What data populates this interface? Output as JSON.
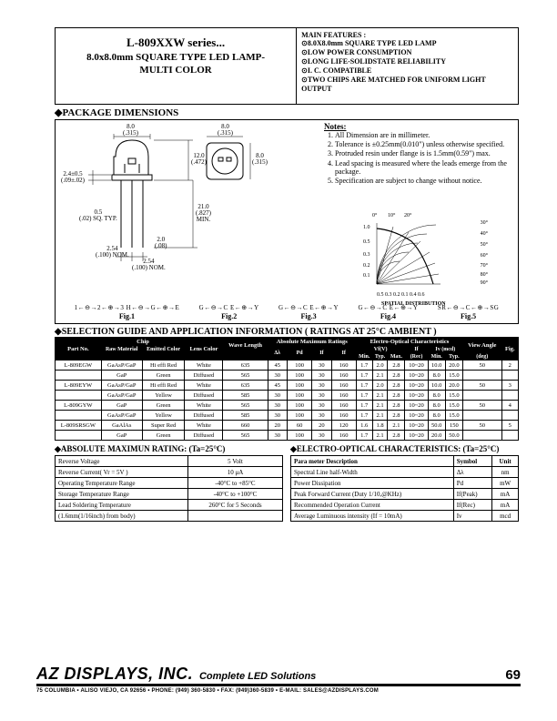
{
  "header": {
    "series": "L-809XXW series...",
    "subtitle1": "8.0x8.0mm SQUARE TYPE LED LAMP-",
    "subtitle2": "MULTI COLOR",
    "features_title": "MAIN FEATURES :",
    "features": [
      "⊙8.0X8.0mm SQUARE TYPE LED LAMP",
      "⊙LOW POWER CONSUMPTION",
      "⊙LONG LIFE-SOLIDSTATE RELIABILITY",
      "⊙I. C. COMPATIBLE",
      "⊙TWO CHIPS ARE MATCHED FOR UNIFORM LIGHT OUTPUT"
    ]
  },
  "pkg": {
    "title": "◆PACKAGE DIMENSIONS",
    "notes_title": "Notes:",
    "notes": [
      "All Dimension are in millimeter.",
      "Tolerance is ±0.25mm(0.010\") unless otherwise specified.",
      "Protruded resin under flange is is 1.5mm(0.59\") max.",
      "Lead spacing is measured where the leads emerge from the package.",
      "Specification are subject to change without notice."
    ],
    "dims": {
      "d1": "8.0",
      "d1i": "(.315)",
      "d2": "8.0",
      "d2i": "(.315)",
      "d3": "12.0",
      "d3i": "(.472)",
      "d4": "2.4±0.5",
      "d4i": "(.09±.02)",
      "d5": "21.0",
      "d5i": "(.827)",
      "d5b": "MIN.",
      "d6": "0.5",
      "d6i": "(.02)",
      "d6s": "SQ. TYP.",
      "d7": "2.54",
      "d7i": "(.100)",
      "d7s": "NOM.",
      "d8": "2.54",
      "d8i": "(.100)",
      "d8s": "NOM.",
      "d9": "2.0",
      "d9i": "(.08)"
    },
    "spatial": {
      "title": "SPATIAL DISTRIBUTION",
      "angles": [
        "0°",
        "10°",
        "20°",
        "30°",
        "40°",
        "50°",
        "60°",
        "70°",
        "80°",
        "90°"
      ],
      "radii": [
        "0.5",
        "1.0",
        "0.5",
        "0.3",
        "0.2",
        "0.1",
        "0.2",
        "0.3",
        "0.4",
        "0.6"
      ]
    },
    "figs": [
      {
        "pins": "1←⊖→2←⊕→3  H←⊖→G←⊕→E",
        "label": "Fig.1"
      },
      {
        "pins": "G←⊖→C  E←⊕→Y",
        "label": "Fig.2"
      },
      {
        "pins": "G←⊖→C  E←⊕→Y",
        "label": "Fig.3"
      },
      {
        "pins": "G←⊖→C  E←⊕→Y",
        "label": "Fig.4"
      },
      {
        "pins": "SR←⊖→C←⊕→SG",
        "label": "Fig.5"
      }
    ]
  },
  "sel": {
    "title": "◆SELECTION GUIDE AND APPLICATION INFORMATION ( RATINGS AT 25°C AMBIENT )",
    "headers1": [
      "Part No.",
      "Chip",
      "",
      "Lens Color",
      "Wave Length",
      "Absolute Maximum Ratings",
      "",
      "",
      "",
      "Electro-Optical Characteristics",
      "",
      "",
      "",
      "",
      "",
      "View Angle",
      "Fig."
    ],
    "headers2": [
      "",
      "Raw Material",
      "Emitted Color",
      "",
      "",
      "Δλ",
      "Pd",
      "If",
      "If",
      "Vf(V)",
      "",
      "",
      "If",
      "Iv (mcd)",
      "",
      "",
      ""
    ],
    "headers3": [
      "",
      "",
      "",
      "",
      "",
      "",
      "",
      "",
      "",
      "Min.",
      "Typ.",
      "Max.",
      "(Rec)",
      "Min.",
      "Typ.",
      "(deg)",
      ""
    ],
    "rows": [
      [
        "L-809EGW",
        "GaAsP/GaP",
        "Hi effi Red",
        "White",
        "635",
        "45",
        "100",
        "30",
        "160",
        "1.7",
        "2.0",
        "2.8",
        "10~20",
        "10.0",
        "20.0",
        "50",
        "2"
      ],
      [
        "",
        "GaP",
        "Green",
        "Diffused",
        "565",
        "30",
        "100",
        "30",
        "160",
        "1.7",
        "2.1",
        "2.8",
        "10~20",
        "8.0",
        "15.0",
        "",
        ""
      ],
      [
        "L-809EYW",
        "GaAsP/GaP",
        "Hi effi Red",
        "White",
        "635",
        "45",
        "100",
        "30",
        "160",
        "1.7",
        "2.0",
        "2.8",
        "10~20",
        "10.0",
        "20.0",
        "50",
        "3"
      ],
      [
        "",
        "GaAsP/GaP",
        "Yellow",
        "Diffused",
        "585",
        "30",
        "100",
        "30",
        "160",
        "1.7",
        "2.1",
        "2.8",
        "10~20",
        "8.0",
        "15.0",
        "",
        ""
      ],
      [
        "L-809GYW",
        "GaP",
        "Green",
        "White",
        "565",
        "30",
        "100",
        "30",
        "160",
        "1.7",
        "2.1",
        "2.8",
        "10~20",
        "8.0",
        "15.0",
        "50",
        "4"
      ],
      [
        "",
        "GaAsP/GaP",
        "Yellow",
        "Diffused",
        "585",
        "30",
        "100",
        "30",
        "160",
        "1.7",
        "2.1",
        "2.8",
        "10~20",
        "8.0",
        "15.0",
        "",
        ""
      ],
      [
        "L-809SRSGW",
        "GaAlAs",
        "Super Red",
        "White",
        "660",
        "20",
        "60",
        "20",
        "120",
        "1.6",
        "1.8",
        "2.1",
        "10~20",
        "50.0",
        "150",
        "50",
        "5"
      ],
      [
        "",
        "GaP",
        "Green",
        "Diffused",
        "565",
        "30",
        "100",
        "30",
        "160",
        "1.7",
        "2.1",
        "2.8",
        "10~20",
        "20.0",
        "50.0",
        "",
        ""
      ]
    ]
  },
  "abs": {
    "title": "◆ABSOLUTE MAXIMUN RATING: (Ta=25°C)",
    "rows": [
      [
        "Reverse Voltage",
        "5 Volt"
      ],
      [
        "Reverse Current( Vr = 5V )",
        "10 μA"
      ],
      [
        "Operating Temperature Range",
        "-40°C to +85°C"
      ],
      [
        "Storage Temperature Range",
        "-40°C to +100°C"
      ],
      [
        "Lead Soldering Temperature",
        "260°C for 5 Seconds"
      ],
      [
        "(1.6mm(1/16inch) from body)",
        ""
      ]
    ]
  },
  "eoc": {
    "title": "◆ELECTRO-OPTICAL CHARACTERISTICS: (Ta=25°C)",
    "headers": [
      "Para meter Description",
      "Symbol",
      "Unit"
    ],
    "rows": [
      [
        "Spectral Line half-Width",
        "Δλ",
        "nm"
      ],
      [
        "Power Dissipation",
        "Pd",
        "mW"
      ],
      [
        "Peak Forward Current (Duty 1/10,@KHz)",
        "If(Peak)",
        "mA"
      ],
      [
        "Recommended Operation Current",
        "If(Rec)",
        "mA"
      ],
      [
        "Average Luminuous intensity (If = 10mA)",
        "Iv",
        "mcd"
      ]
    ]
  },
  "footer": {
    "company": "AZ DISPLAYS, INC.",
    "tagline": "Complete LED Solutions",
    "page": "69",
    "addr": "75 COLUMBIA • ALISO VIEJO, CA 92656 • PHONE: (949) 360-5830 • FAX: (949)360-5839 • E-MAIL: SALES@AZDISPLAYS.COM"
  }
}
